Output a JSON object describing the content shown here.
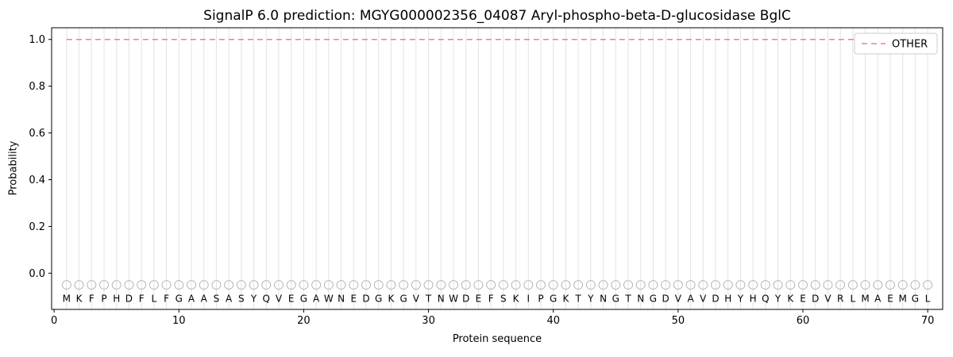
{
  "chart_data": {
    "type": "line",
    "title": "SignalP 6.0 prediction: MGYG000002356_04087 Aryl-phospho-beta-D-glucosidase BglC",
    "xlabel": "Protein sequence",
    "ylabel": "Probability",
    "xlim": [
      -0.2,
      71.2
    ],
    "ylim": [
      -0.155,
      1.05
    ],
    "x_ticks": [
      0,
      10,
      20,
      30,
      40,
      50,
      60,
      70
    ],
    "y_ticks": [
      0.0,
      0.2,
      0.4,
      0.6,
      0.8,
      1.0
    ],
    "grid": "per-residue vertical lines",
    "legend": {
      "position": "upper right",
      "entries": [
        {
          "label": "OTHER",
          "color": "#f08080",
          "dash": true
        }
      ]
    },
    "x_start": 1,
    "series": [
      {
        "name": "OTHER",
        "color": "#f08080",
        "style": "dashed",
        "values": [
          1,
          1,
          1,
          1,
          1,
          1,
          1,
          1,
          1,
          1,
          1,
          1,
          1,
          1,
          1,
          1,
          1,
          1,
          1,
          1,
          1,
          1,
          1,
          1,
          1,
          1,
          1,
          1,
          1,
          1,
          1,
          1,
          1,
          1,
          1,
          1,
          1,
          1,
          1,
          1,
          1,
          1,
          1,
          1,
          1,
          1,
          1,
          1,
          1,
          1,
          1,
          1,
          1,
          1,
          1,
          1,
          1,
          1,
          1,
          1,
          1,
          1,
          1,
          1,
          1,
          1,
          1,
          1,
          1,
          1
        ]
      }
    ],
    "marker_y": -0.05,
    "letter_y": -0.11,
    "sequence": [
      "M",
      "K",
      "F",
      "P",
      "H",
      "D",
      "F",
      "L",
      "F",
      "G",
      "A",
      "A",
      "S",
      "A",
      "S",
      "Y",
      "Q",
      "V",
      "E",
      "G",
      "A",
      "W",
      "N",
      "E",
      "D",
      "G",
      "K",
      "G",
      "V",
      "T",
      "N",
      "W",
      "D",
      "E",
      "F",
      "S",
      "K",
      "I",
      "P",
      "G",
      "K",
      "T",
      "Y",
      "N",
      "G",
      "T",
      "N",
      "G",
      "D",
      "V",
      "A",
      "V",
      "D",
      "H",
      "Y",
      "H",
      "Q",
      "Y",
      "K",
      "E",
      "D",
      "V",
      "R",
      "L",
      "M",
      "A",
      "E",
      "M",
      "G",
      "L"
    ],
    "colors": {
      "grid": "#e3e3e3",
      "marker": "#b8b8b8",
      "letter": "#1a1a1a",
      "frame": "#000000",
      "legend_border": "#cccccc"
    }
  }
}
